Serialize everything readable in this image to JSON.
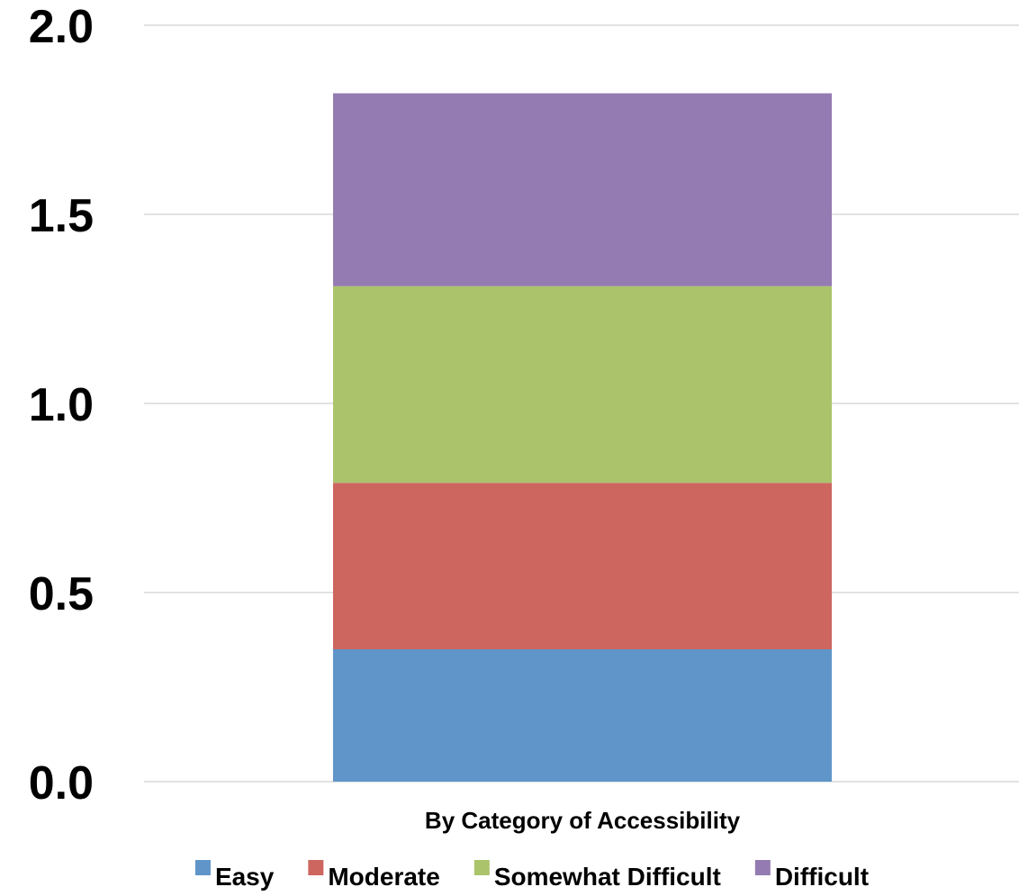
{
  "chart_data": {
    "type": "bar",
    "stacked": true,
    "categories": [
      "By Category of Accessibility"
    ],
    "series": [
      {
        "name": "Easy",
        "values": [
          0.35
        ],
        "color": "#5f95c8"
      },
      {
        "name": "Moderate",
        "values": [
          0.44
        ],
        "color": "#cd665f"
      },
      {
        "name": "Somewhat Difficult",
        "values": [
          0.52
        ],
        "color": "#abc46c"
      },
      {
        "name": "Difficult",
        "values": [
          0.51
        ],
        "color": "#947bb1"
      }
    ],
    "title": "",
    "xlabel": "",
    "ylabel": "",
    "ylim": [
      0,
      2.0
    ],
    "yticks": [
      "0.0",
      "0.5",
      "1.0",
      "1.5",
      "2.0"
    ],
    "grid": true,
    "legend": "bottom"
  }
}
